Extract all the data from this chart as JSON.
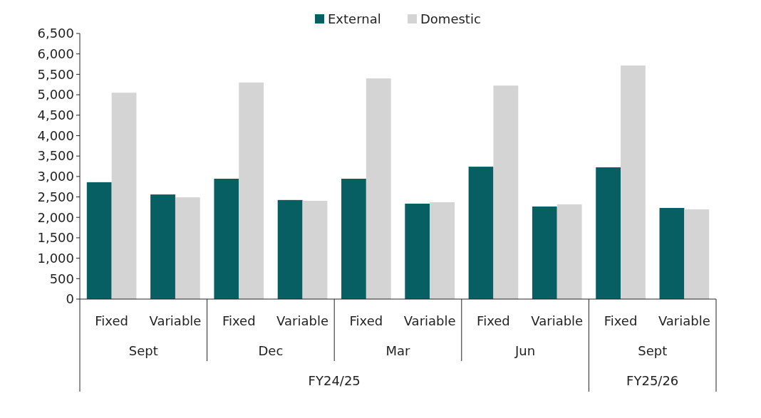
{
  "chart_data": {
    "type": "bar",
    "categories": [
      "Fixed",
      "Variable",
      "Fixed",
      "Variable",
      "Fixed",
      "Variable",
      "Fixed",
      "Variable",
      "Fixed",
      "Variable"
    ],
    "series": [
      {
        "name": "External",
        "color": "#075f63",
        "values": [
          2860,
          2560,
          2945,
          2425,
          2945,
          2335,
          3240,
          2265,
          3225,
          2230
        ]
      },
      {
        "name": "Domestic",
        "color": "#d4d4d4",
        "values": [
          5050,
          2490,
          5300,
          2405,
          5400,
          2370,
          5225,
          2320,
          5715,
          2195
        ]
      }
    ],
    "ylim": [
      0,
      6500
    ],
    "yticks": [
      {
        "value": 0,
        "label": "0"
      },
      {
        "value": 500,
        "label": "500"
      },
      {
        "value": 1000,
        "label": "1,000"
      },
      {
        "value": 1500,
        "label": "1,500"
      },
      {
        "value": 2000,
        "label": "2,000"
      },
      {
        "value": 2500,
        "label": "2,500"
      },
      {
        "value": 3000,
        "label": "3,000"
      },
      {
        "value": 3500,
        "label": "3,500"
      },
      {
        "value": 4000,
        "label": "4,000"
      },
      {
        "value": 4500,
        "label": "4,500"
      },
      {
        "value": 5000,
        "label": "5,000"
      },
      {
        "value": 5500,
        "label": "5,500"
      },
      {
        "value": 6000,
        "label": "6,000"
      },
      {
        "value": 6500,
        "label": "6,500"
      }
    ],
    "annotations": [
      "Sept",
      "Dec",
      "Mar",
      "Jun",
      "Sept",
      "FY24/25",
      "FY25/26"
    ],
    "legend": "top",
    "grid": false
  }
}
